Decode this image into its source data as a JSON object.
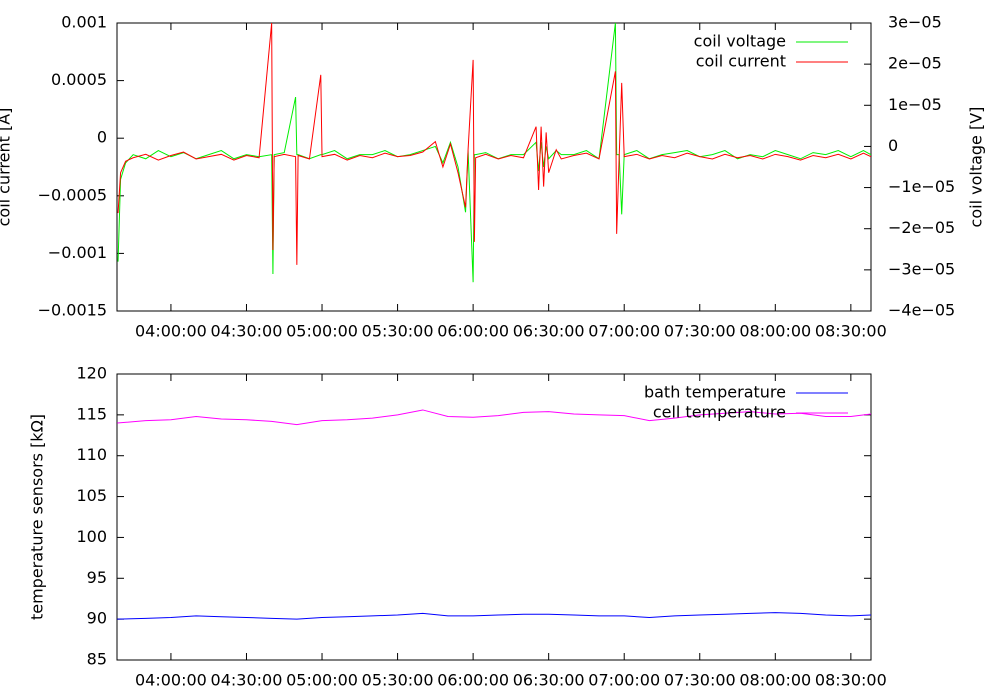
{
  "chart_data": [
    {
      "type": "line",
      "ylabel": "coil current [A]",
      "y2label": "coil voltage [V]",
      "legend": "top-right",
      "grid": false,
      "xlim": [
        "03:38:35",
        "08:38:00"
      ],
      "xticks": [
        "04:00:00",
        "04:30:00",
        "05:00:00",
        "05:30:00",
        "06:00:00",
        "06:30:00",
        "07:00:00",
        "07:30:00",
        "08:00:00",
        "08:30:00"
      ],
      "ylim": [
        -0.0015,
        0.001
      ],
      "yticks": [
        {
          "value": -0.0015,
          "label": "−0.0015"
        },
        {
          "value": -0.001,
          "label": "−0.001"
        },
        {
          "value": -0.0005,
          "label": "−0.0005"
        },
        0,
        0.0005,
        0.001
      ],
      "y2lim": [
        -4e-05,
        3e-05
      ],
      "y2ticks": [
        {
          "value": -4e-05,
          "label": "−4e−05"
        },
        {
          "value": -3e-05,
          "label": "−3e−05"
        },
        {
          "value": -2e-05,
          "label": "−2e−05"
        },
        {
          "value": -1e-05,
          "label": "−1e−05"
        },
        0,
        {
          "value": 1e-05,
          "label": "1e−05"
        },
        {
          "value": 2e-05,
          "label": "2e−05"
        },
        {
          "value": 3e-05,
          "label": "3e−05"
        }
      ],
      "x": [
        "03:39:00",
        "03:40:00",
        "03:42:00",
        "03:45:00",
        "03:50:00",
        "03:55:00",
        "04:00:00",
        "04:05:00",
        "04:10:00",
        "04:15:00",
        "04:20:00",
        "04:25:00",
        "04:30:00",
        "04:35:00",
        "04:40:00",
        "04:40:30",
        "04:41:00",
        "04:45:00",
        "04:49:30",
        "04:50:00",
        "04:50:30",
        "04:55:00",
        "04:59:30",
        "05:00:00",
        "05:05:00",
        "05:10:00",
        "05:15:00",
        "05:20:00",
        "05:25:00",
        "05:30:00",
        "05:35:00",
        "05:40:00",
        "05:45:00",
        "05:48:00",
        "05:51:00",
        "05:54:00",
        "05:57:00",
        "05:58:00",
        "06:00:00",
        "06:00:30",
        "06:01:00",
        "06:05:00",
        "06:10:00",
        "06:15:00",
        "06:20:00",
        "06:25:00",
        "06:26:00",
        "06:27:00",
        "06:28:00",
        "06:29:00",
        "06:30:00",
        "06:33:00",
        "06:35:00",
        "06:40:00",
        "06:45:00",
        "06:50:00",
        "06:56:30",
        "06:57:00",
        "06:58:00",
        "06:59:00",
        "07:00:00",
        "07:05:00",
        "07:10:00",
        "07:15:00",
        "07:20:00",
        "07:25:00",
        "07:30:00",
        "07:35:00",
        "07:40:00",
        "07:45:00",
        "07:50:00",
        "07:55:00",
        "08:00:00",
        "08:05:00",
        "08:10:00",
        "08:15:00",
        "08:20:00",
        "08:25:00",
        "08:30:00",
        "08:35:00",
        "08:38:00"
      ],
      "series": [
        {
          "name": "coil voltage",
          "color": "#00ee00",
          "axis": "y2",
          "values": [
            -2.8e-05,
            -8e-06,
            -4e-06,
            -2e-06,
            -3e-06,
            -1e-06,
            -2.5e-06,
            -1.5e-06,
            -3e-06,
            -2e-06,
            -1e-06,
            -3e-06,
            -2e-06,
            -2.5e-06,
            -2e-06,
            -3.1e-05,
            -2e-06,
            -1.5e-06,
            1.2e-05,
            -2e-06,
            -2e-06,
            -3e-06,
            -2e-06,
            -2e-06,
            -1e-06,
            -3e-06,
            -2e-06,
            -2e-06,
            -1e-06,
            -2.5e-06,
            -2e-06,
            -1e-06,
            0,
            -4e-06,
            1e-06,
            -5e-06,
            -1.6e-05,
            -1e-06,
            -3.3e-05,
            -2e-06,
            -2e-06,
            -1.5e-06,
            -3e-06,
            -2e-06,
            -2e-06,
            1e-06,
            -6e-06,
            1e-06,
            -5e-06,
            0,
            -3e-06,
            -1e-06,
            -2e-06,
            -2e-06,
            -1e-06,
            -3e-06,
            3e-05,
            -2e-06,
            -2e-06,
            -1.65e-05,
            -2e-06,
            -1e-06,
            -3e-06,
            -2e-06,
            -1.5e-06,
            -1e-06,
            -2.5e-06,
            -2e-06,
            -1e-06,
            -3e-06,
            -2e-06,
            -2.5e-06,
            -1e-06,
            -2e-06,
            -3e-06,
            -1.5e-06,
            -2e-06,
            -1e-06,
            -2.5e-06,
            -1e-06,
            -2e-06
          ]
        },
        {
          "name": "coil current",
          "color": "#ff0000",
          "values": [
            -0.00065,
            -0.0003,
            -0.0002,
            -0.00017,
            -0.00014,
            -0.00019,
            -0.00015,
            -0.00012,
            -0.00018,
            -0.00016,
            -0.00014,
            -0.00019,
            -0.00015,
            -0.00017,
            0.001,
            -0.00097,
            -0.00016,
            -0.00014,
            -0.00016,
            -0.0011,
            -0.00015,
            -0.00018,
            0.00055,
            -0.00016,
            -0.00014,
            -0.00019,
            -0.00015,
            -0.00017,
            -0.00013,
            -0.00016,
            -0.00015,
            -0.00012,
            -3e-05,
            -0.00025,
            -5e-05,
            -0.0003,
            -0.0006,
            -0.0001,
            0.00068,
            -0.0009,
            -0.00017,
            -0.00014,
            -0.00018,
            -0.00015,
            -0.00017,
            0.0001,
            -0.00045,
            0.0001,
            -0.00042,
            5e-05,
            -0.0003,
            -0.0001,
            -0.00018,
            -0.00015,
            -0.00013,
            -0.00018,
            0.00058,
            -0.00083,
            -0.00016,
            0.00048,
            -0.00016,
            -0.00014,
            -0.00018,
            -0.00015,
            -0.00017,
            -0.00013,
            -0.00016,
            -0.00018,
            -0.00014,
            -0.00017,
            -0.00015,
            -0.00018,
            -0.00014,
            -0.00016,
            -0.00019,
            -0.00015,
            -0.00017,
            -0.00014,
            -0.00018,
            -0.00013,
            -0.00016
          ]
        }
      ]
    },
    {
      "type": "line",
      "ylabel": "temperature sensors [kΩ]",
      "legend": "top-right",
      "grid": false,
      "xlim": [
        "03:38:35",
        "08:38:00"
      ],
      "xticks": [
        "04:00:00",
        "04:30:00",
        "05:00:00",
        "05:30:00",
        "06:00:00",
        "06:30:00",
        "07:00:00",
        "07:30:00",
        "08:00:00",
        "08:30:00"
      ],
      "ylim": [
        85,
        120
      ],
      "yticks": [
        85,
        90,
        95,
        100,
        105,
        110,
        115,
        120
      ],
      "x": [
        "03:38:40",
        "03:50:00",
        "04:00:00",
        "04:10:00",
        "04:20:00",
        "04:30:00",
        "04:40:00",
        "04:50:00",
        "05:00:00",
        "05:10:00",
        "05:20:00",
        "05:30:00",
        "05:40:00",
        "05:50:00",
        "06:00:00",
        "06:10:00",
        "06:20:00",
        "06:30:00",
        "06:40:00",
        "06:50:00",
        "07:00:00",
        "07:10:00",
        "07:20:00",
        "07:30:00",
        "07:40:00",
        "07:50:00",
        "08:00:00",
        "08:10:00",
        "08:20:00",
        "08:30:00",
        "08:38:00"
      ],
      "series": [
        {
          "name": "bath temperature",
          "color": "#0000ff",
          "values": [
            90.0,
            90.1,
            90.2,
            90.4,
            90.3,
            90.2,
            90.1,
            90.0,
            90.2,
            90.3,
            90.4,
            90.5,
            90.7,
            90.4,
            90.4,
            90.5,
            90.6,
            90.6,
            90.5,
            90.4,
            90.4,
            90.2,
            90.4,
            90.5,
            90.6,
            90.7,
            90.8,
            90.7,
            90.5,
            90.4,
            90.5
          ]
        },
        {
          "name": "cell temperature",
          "color": "#ff00ff",
          "values": [
            114.0,
            114.3,
            114.4,
            114.8,
            114.5,
            114.4,
            114.2,
            113.8,
            114.3,
            114.4,
            114.6,
            115.0,
            115.6,
            114.8,
            114.7,
            114.9,
            115.3,
            115.4,
            115.1,
            115.0,
            114.9,
            114.3,
            114.6,
            115.0,
            115.2,
            115.4,
            115.1,
            115.2,
            114.8,
            114.8,
            115.1
          ]
        }
      ]
    }
  ]
}
